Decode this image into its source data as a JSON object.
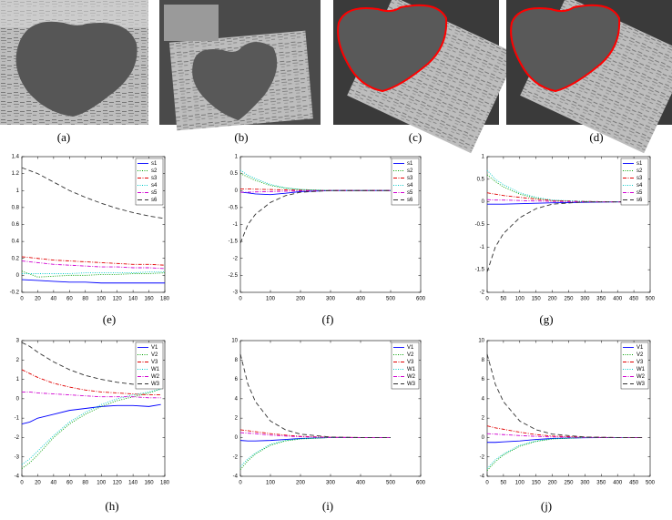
{
  "photos": [
    {
      "caption": "(a)"
    },
    {
      "caption": "(b)"
    },
    {
      "caption": "(c)"
    },
    {
      "caption": "(d)"
    }
  ],
  "chart_data": [
    {
      "type": "line",
      "caption": "(e)",
      "x": [
        0,
        20,
        40,
        60,
        80,
        100,
        120,
        140,
        160,
        180
      ],
      "xlim": [
        0,
        180
      ],
      "xticks": [
        0,
        20,
        40,
        60,
        80,
        100,
        120,
        140,
        160,
        180
      ],
      "ylim": [
        -0.2,
        1.4
      ],
      "yticks": [
        -0.2,
        0,
        0.2,
        0.4,
        0.6,
        0.8,
        1,
        1.2,
        1.4
      ],
      "legend": "upper right",
      "series": [
        {
          "name": "s1",
          "color": "#0000ff",
          "dash": "solid",
          "values": [
            -0.05,
            -0.06,
            -0.07,
            -0.08,
            -0.08,
            -0.09,
            -0.09,
            -0.09,
            -0.09,
            -0.09
          ]
        },
        {
          "name": "s2",
          "color": "#00a000",
          "dash": "dotted",
          "values": [
            0.05,
            -0.02,
            -0.01,
            0,
            0,
            0.01,
            0.01,
            0.02,
            0.02,
            0.03
          ]
        },
        {
          "name": "s3",
          "color": "#e00000",
          "dash": "dashdot",
          "values": [
            0.22,
            0.2,
            0.18,
            0.17,
            0.16,
            0.15,
            0.14,
            0.13,
            0.13,
            0.12
          ]
        },
        {
          "name": "s4",
          "color": "#00c8c8",
          "dash": "dotted",
          "values": [
            0.02,
            0.02,
            0.02,
            0.02,
            0.03,
            0.03,
            0.03,
            0.03,
            0.04,
            0.04
          ]
        },
        {
          "name": "s5",
          "color": "#d000d0",
          "dash": "dashdot",
          "values": [
            0.17,
            0.15,
            0.13,
            0.12,
            0.11,
            0.1,
            0.1,
            0.09,
            0.09,
            0.08
          ]
        },
        {
          "name": "s6",
          "color": "#303030",
          "dash": "dashed",
          "values": [
            1.27,
            1.2,
            1.1,
            1.0,
            0.92,
            0.85,
            0.79,
            0.74,
            0.7,
            0.67
          ]
        }
      ]
    },
    {
      "type": "line",
      "caption": "(f)",
      "x": [
        0,
        25,
        50,
        100,
        150,
        200,
        300,
        400,
        500
      ],
      "xlim": [
        0,
        600
      ],
      "xticks": [
        0,
        100,
        200,
        300,
        400,
        500,
        600
      ],
      "ylim": [
        -3,
        1
      ],
      "yticks": [
        -3,
        -2.5,
        -2,
        -1.5,
        -1,
        -0.5,
        0,
        0.5,
        1
      ],
      "legend": "upper right",
      "series": [
        {
          "name": "s1",
          "color": "#0000ff",
          "dash": "solid",
          "values": [
            -0.05,
            -0.07,
            -0.1,
            -0.12,
            -0.08,
            -0.03,
            0,
            0,
            0
          ]
        },
        {
          "name": "s2",
          "color": "#00a000",
          "dash": "dotted",
          "values": [
            0.5,
            0.4,
            0.3,
            0.15,
            0.07,
            0.03,
            0,
            0,
            0
          ]
        },
        {
          "name": "s3",
          "color": "#e00000",
          "dash": "dashdot",
          "values": [
            0.05,
            0.05,
            0.04,
            0.03,
            0.02,
            0.01,
            0,
            0,
            0
          ]
        },
        {
          "name": "s4",
          "color": "#00c8c8",
          "dash": "dotted",
          "values": [
            0.6,
            0.45,
            0.35,
            0.18,
            0.08,
            0.03,
            0,
            0,
            0
          ]
        },
        {
          "name": "s5",
          "color": "#d000d0",
          "dash": "dashdot",
          "values": [
            -0.05,
            -0.05,
            -0.04,
            -0.03,
            -0.02,
            -0.01,
            0,
            0,
            0
          ]
        },
        {
          "name": "s6",
          "color": "#303030",
          "dash": "dashed",
          "values": [
            -1.55,
            -1.0,
            -0.7,
            -0.35,
            -0.15,
            -0.05,
            0,
            0,
            0
          ]
        }
      ]
    },
    {
      "type": "line",
      "caption": "(g)",
      "x": [
        0,
        25,
        50,
        100,
        150,
        200,
        300,
        400,
        475
      ],
      "xlim": [
        0,
        500
      ],
      "xticks": [
        0,
        50,
        100,
        150,
        200,
        250,
        300,
        350,
        400,
        450,
        500
      ],
      "ylim": [
        -2,
        1
      ],
      "yticks": [
        -2,
        -1.5,
        -1,
        -0.5,
        0,
        0.5,
        1
      ],
      "legend": "upper right",
      "series": [
        {
          "name": "s1",
          "color": "#0000ff",
          "dash": "solid",
          "values": [
            -0.05,
            -0.05,
            -0.05,
            -0.04,
            -0.03,
            -0.02,
            -0.01,
            0,
            0
          ]
        },
        {
          "name": "s2",
          "color": "#00a000",
          "dash": "dotted",
          "values": [
            0.6,
            0.45,
            0.33,
            0.17,
            0.08,
            0.03,
            0,
            0,
            0
          ]
        },
        {
          "name": "s3",
          "color": "#e00000",
          "dash": "dashdot",
          "values": [
            0.2,
            0.17,
            0.14,
            0.1,
            0.06,
            0.03,
            0.01,
            0,
            0
          ]
        },
        {
          "name": "s4",
          "color": "#00c8c8",
          "dash": "dotted",
          "values": [
            0.7,
            0.5,
            0.38,
            0.2,
            0.1,
            0.04,
            0.01,
            0,
            0
          ]
        },
        {
          "name": "s5",
          "color": "#d000d0",
          "dash": "dashdot",
          "values": [
            0.05,
            0.04,
            0.04,
            0.03,
            0.02,
            0.01,
            0,
            0,
            0
          ]
        },
        {
          "name": "s6",
          "color": "#303030",
          "dash": "dashed",
          "values": [
            -1.55,
            -1.0,
            -0.7,
            -0.35,
            -0.15,
            -0.05,
            0,
            0,
            0
          ]
        }
      ]
    },
    {
      "type": "line",
      "caption": "(h)",
      "x": [
        0,
        10,
        20,
        40,
        60,
        80,
        100,
        120,
        140,
        160,
        175
      ],
      "xlim": [
        0,
        180
      ],
      "xticks": [
        0,
        20,
        40,
        60,
        80,
        100,
        120,
        140,
        160,
        180
      ],
      "ylim": [
        -4,
        3
      ],
      "yticks": [
        -4,
        -3,
        -2,
        -1,
        0,
        1,
        2,
        3
      ],
      "legend": "upper right",
      "series": [
        {
          "name": "V1",
          "color": "#0000ff",
          "dash": "solid",
          "values": [
            -1.3,
            -1.2,
            -1.0,
            -0.8,
            -0.6,
            -0.5,
            -0.4,
            -0.35,
            -0.35,
            -0.4,
            -0.3
          ]
        },
        {
          "name": "V2",
          "color": "#00a000",
          "dash": "dotted",
          "values": [
            -3.6,
            -3.3,
            -2.9,
            -2.0,
            -1.3,
            -0.8,
            -0.4,
            -0.1,
            0.1,
            0.3,
            0.5
          ]
        },
        {
          "name": "V3",
          "color": "#e00000",
          "dash": "dashdot",
          "values": [
            1.5,
            1.3,
            1.1,
            0.8,
            0.6,
            0.45,
            0.35,
            0.3,
            0.25,
            0.2,
            0.2
          ]
        },
        {
          "name": "W1",
          "color": "#00c8c8",
          "dash": "dotted",
          "values": [
            -3.4,
            -3.1,
            -2.7,
            -1.9,
            -1.2,
            -0.7,
            -0.3,
            0,
            0.2,
            0.35,
            0.5
          ]
        },
        {
          "name": "W2",
          "color": "#d000d0",
          "dash": "dashdot",
          "values": [
            0.35,
            0.35,
            0.3,
            0.25,
            0.2,
            0.15,
            0.1,
            0.1,
            0.1,
            0.05,
            0.05
          ]
        },
        {
          "name": "W3",
          "color": "#303030",
          "dash": "dashed",
          "values": [
            2.9,
            2.7,
            2.4,
            1.9,
            1.5,
            1.2,
            1.0,
            0.85,
            0.75,
            0.65,
            0.6
          ]
        }
      ]
    },
    {
      "type": "line",
      "caption": "(i)",
      "x": [
        0,
        25,
        50,
        100,
        150,
        200,
        300,
        400,
        500
      ],
      "xlim": [
        0,
        600
      ],
      "xticks": [
        0,
        100,
        200,
        300,
        400,
        500,
        600
      ],
      "ylim": [
        -4,
        10
      ],
      "yticks": [
        -4,
        -2,
        0,
        2,
        4,
        6,
        8,
        10
      ],
      "legend": "upper right",
      "series": [
        {
          "name": "V1",
          "color": "#0000ff",
          "dash": "solid",
          "values": [
            -0.3,
            -0.35,
            -0.35,
            -0.3,
            -0.2,
            -0.1,
            0,
            0,
            0
          ]
        },
        {
          "name": "V2",
          "color": "#00a000",
          "dash": "dotted",
          "values": [
            -3.3,
            -2.4,
            -1.7,
            -0.8,
            -0.35,
            -0.15,
            0,
            0,
            0
          ]
        },
        {
          "name": "V3",
          "color": "#e00000",
          "dash": "dashdot",
          "values": [
            0.8,
            0.7,
            0.6,
            0.4,
            0.25,
            0.12,
            0.02,
            0,
            0
          ]
        },
        {
          "name": "W1",
          "color": "#00c8c8",
          "dash": "dotted",
          "values": [
            -3.0,
            -2.2,
            -1.6,
            -0.7,
            -0.3,
            -0.12,
            0,
            0,
            0
          ]
        },
        {
          "name": "W2",
          "color": "#d000d0",
          "dash": "dashdot",
          "values": [
            0.5,
            0.45,
            0.4,
            0.25,
            0.15,
            0.08,
            0.01,
            0,
            0
          ]
        },
        {
          "name": "W3",
          "color": "#303030",
          "dash": "dashed",
          "values": [
            8.6,
            5.5,
            3.7,
            1.7,
            0.8,
            0.35,
            0.05,
            0,
            0
          ]
        }
      ]
    },
    {
      "type": "line",
      "caption": "(j)",
      "x": [
        0,
        25,
        50,
        100,
        150,
        200,
        300,
        400,
        475
      ],
      "xlim": [
        0,
        500
      ],
      "xticks": [
        0,
        50,
        100,
        150,
        200,
        250,
        300,
        350,
        400,
        450,
        500
      ],
      "ylim": [
        -4,
        10
      ],
      "yticks": [
        -4,
        -2,
        0,
        2,
        4,
        6,
        8,
        10
      ],
      "legend": "upper right",
      "series": [
        {
          "name": "V1",
          "color": "#0000ff",
          "dash": "solid",
          "values": [
            -0.5,
            -0.5,
            -0.45,
            -0.35,
            -0.2,
            -0.1,
            -0.02,
            0,
            0
          ]
        },
        {
          "name": "V2",
          "color": "#00a000",
          "dash": "dotted",
          "values": [
            -3.4,
            -2.5,
            -1.8,
            -0.9,
            -0.4,
            -0.15,
            0,
            0,
            0
          ]
        },
        {
          "name": "V3",
          "color": "#e00000",
          "dash": "dashdot",
          "values": [
            1.2,
            1.0,
            0.85,
            0.55,
            0.3,
            0.15,
            0.03,
            0,
            0
          ]
        },
        {
          "name": "W1",
          "color": "#00c8c8",
          "dash": "dotted",
          "values": [
            -3.2,
            -2.3,
            -1.7,
            -0.8,
            -0.35,
            -0.12,
            0,
            0,
            0
          ]
        },
        {
          "name": "W2",
          "color": "#d000d0",
          "dash": "dashdot",
          "values": [
            0.4,
            0.35,
            0.3,
            0.2,
            0.12,
            0.06,
            0.01,
            0,
            0
          ]
        },
        {
          "name": "W3",
          "color": "#303030",
          "dash": "dashed",
          "values": [
            8.6,
            5.5,
            3.7,
            1.7,
            0.8,
            0.35,
            0.05,
            0,
            0
          ]
        }
      ]
    }
  ]
}
